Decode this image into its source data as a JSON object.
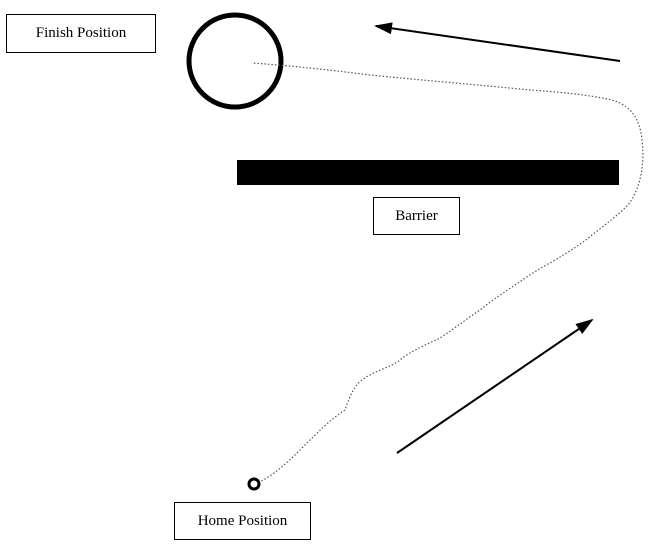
{
  "labels": {
    "finish": "Finish Position",
    "barrier": "Barrier",
    "home": "Home Position"
  },
  "colors": {
    "ink": "#000000",
    "path": "#555555",
    "background": "#ffffff"
  }
}
